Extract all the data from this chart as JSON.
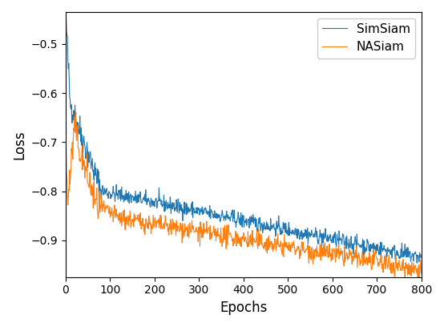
{
  "title": "",
  "xlabel": "Epochs",
  "ylabel": "Loss",
  "xlim": [
    0,
    800
  ],
  "ylim": [
    -0.975,
    -0.435
  ],
  "yticks": [
    -0.9,
    -0.8,
    -0.7,
    -0.6,
    -0.5
  ],
  "xticks": [
    0,
    100,
    200,
    300,
    400,
    500,
    600,
    700,
    800
  ],
  "simsiam_color": "#1f77b4",
  "nasiam_color": "#ff7f0e",
  "simsiam_label": "SimSiam",
  "nasiam_label": "NASiam",
  "figsize": [
    5.54,
    4.08
  ],
  "dpi": 100,
  "seed": 42,
  "n_epochs": 800,
  "line_width": 0.8
}
